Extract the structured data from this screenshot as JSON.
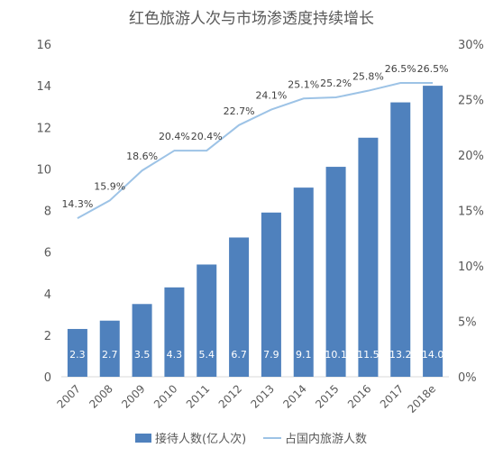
{
  "chart_data": {
    "type": "bar",
    "title": "红色旅游人次与市场渗透度持续增长",
    "categories": [
      "2007",
      "2008",
      "2009",
      "2010",
      "2011",
      "2012",
      "2013",
      "2014",
      "2015",
      "2016",
      "2017",
      "2018e"
    ],
    "series": [
      {
        "name": "接待人数(亿人次)",
        "type": "bar",
        "axis": "left",
        "color": "#4f81bd",
        "values": [
          2.3,
          2.7,
          3.5,
          4.3,
          5.4,
          6.7,
          7.9,
          9.1,
          10.1,
          11.5,
          13.2,
          14.0
        ],
        "labels": [
          "2.3",
          "2.7",
          "3.5",
          "4.3",
          "5.4",
          "6.7",
          "7.9",
          "9.1",
          "10.1",
          "11.5",
          "13.2",
          "14.0"
        ]
      },
      {
        "name": "占国内旅游人数",
        "type": "line",
        "axis": "right",
        "color": "#9dc3e6",
        "values": [
          14.3,
          15.9,
          18.6,
          20.4,
          20.4,
          22.7,
          24.1,
          25.1,
          25.2,
          25.8,
          26.5,
          26.5
        ],
        "labels": [
          "14.3%",
          "15.9%",
          "18.6%",
          "20.4%",
          "20.4%",
          "22.7%",
          "24.1%",
          "25.1%",
          "25.2%",
          "25.8%",
          "26.5%",
          "26.5%"
        ]
      }
    ],
    "y_left": {
      "ylim": [
        0,
        16
      ],
      "ticks": [
        0,
        2,
        4,
        6,
        8,
        10,
        12,
        14,
        16
      ],
      "tick_labels": [
        "0",
        "2",
        "4",
        "6",
        "8",
        "10",
        "12",
        "14",
        "16"
      ]
    },
    "y_right": {
      "ylim": [
        0,
        30
      ],
      "ticks": [
        0,
        5,
        10,
        15,
        20,
        25,
        30
      ],
      "tick_labels": [
        "0%",
        "5%",
        "10%",
        "15%",
        "20%",
        "25%",
        "30%"
      ]
    },
    "grid": false,
    "legend": "bottom"
  }
}
